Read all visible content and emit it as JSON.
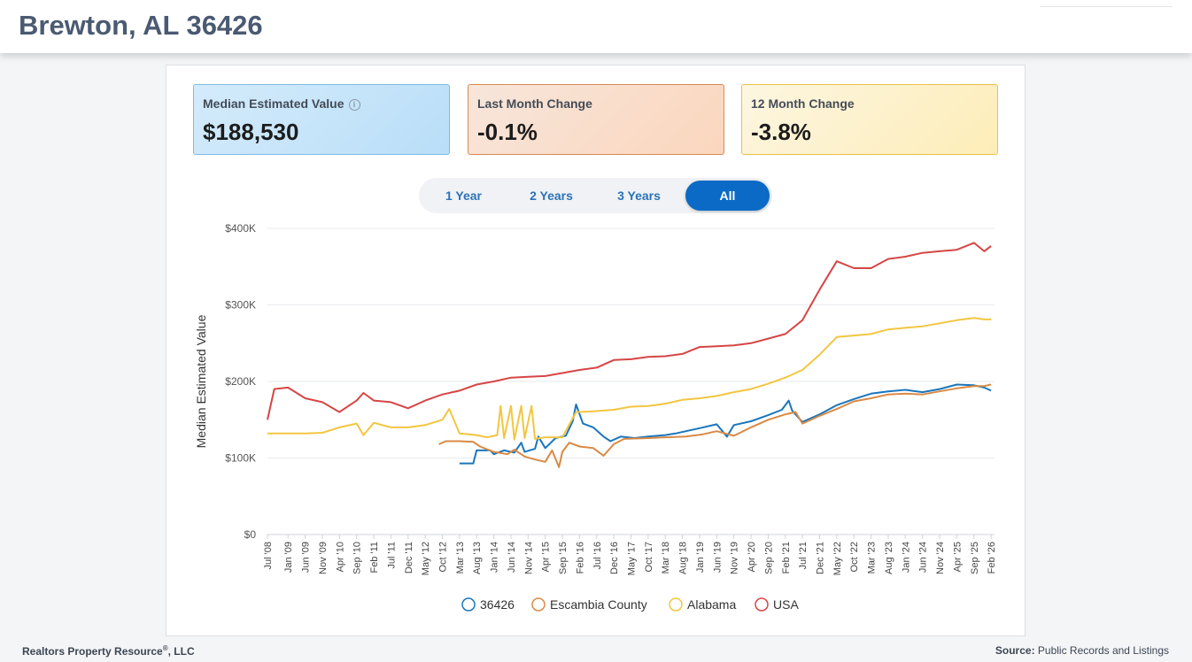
{
  "header": {
    "title": "Brewton, AL 36426"
  },
  "cards": [
    {
      "label": "Median Estimated Value",
      "value": "$188,530",
      "icon": "info-icon"
    },
    {
      "label": "Last Month Change",
      "value": "-0.1%"
    },
    {
      "label": "12 Month Change",
      "value": "-3.8%"
    }
  ],
  "tabs": [
    {
      "label": "1 Year",
      "active": false
    },
    {
      "label": "2 Years",
      "active": false
    },
    {
      "label": "3 Years",
      "active": false
    },
    {
      "label": "All",
      "active": true
    }
  ],
  "footer": {
    "left": "Realtors Property Resource",
    "left_mark": "®",
    "left_suffix": ", LLC",
    "right_label": "Source:",
    "right_text": " Public Records and Listings"
  },
  "chart_data": {
    "type": "line",
    "ylabel": "Median Estimated Value",
    "ylim": [
      0,
      400000
    ],
    "yticks": [
      0,
      100000,
      200000,
      300000,
      400000
    ],
    "ytick_labels": [
      "$0",
      "$100K",
      "$200K",
      "$300K",
      "$400K"
    ],
    "x_range": [
      "2008-07",
      "2026-03"
    ],
    "x_tick_labels": [
      "Jul '08",
      "Jan '09",
      "Jun '09",
      "Nov '09",
      "Apr '10",
      "Sep '10",
      "Feb '11",
      "Jul '11",
      "Dec '11",
      "May '12",
      "Oct '12",
      "Mar '13",
      "Aug '13",
      "Jan '14",
      "Jun '14",
      "Nov '14",
      "Apr '15",
      "Sep '15",
      "Feb '16",
      "Jul '16",
      "Dec '16",
      "May '17",
      "Oct '17",
      "Mar '18",
      "Aug '18",
      "Jan '19",
      "Jun '19",
      "Nov '19",
      "Apr '20",
      "Sep '20",
      "Feb '21",
      "Jul '21",
      "Dec '21",
      "May '22",
      "Oct '22",
      "Mar '23",
      "Aug '23",
      "Jan '24",
      "Jun '24",
      "Nov '24",
      "Apr '25",
      "Sep '25",
      "Feb '26"
    ],
    "grid": true,
    "legend_position": "bottom",
    "series": [
      {
        "name": "36426",
        "color": "#1a76bd",
        "points": [
          [
            "2013-03",
            93000
          ],
          [
            "2013-07",
            93000
          ],
          [
            "2013-08",
            110000
          ],
          [
            "2013-12",
            110000
          ],
          [
            "2014-01",
            105000
          ],
          [
            "2014-04",
            110000
          ],
          [
            "2014-07",
            107000
          ],
          [
            "2014-09",
            120000
          ],
          [
            "2014-10",
            108000
          ],
          [
            "2015-01",
            112000
          ],
          [
            "2015-02",
            128000
          ],
          [
            "2015-04",
            113000
          ],
          [
            "2015-07",
            126000
          ],
          [
            "2015-10",
            129000
          ],
          [
            "2015-12",
            148000
          ],
          [
            "2016-01",
            170000
          ],
          [
            "2016-03",
            145000
          ],
          [
            "2016-06",
            140000
          ],
          [
            "2016-09",
            128000
          ],
          [
            "2016-11",
            122000
          ],
          [
            "2017-02",
            128000
          ],
          [
            "2017-06",
            126000
          ],
          [
            "2017-10",
            128000
          ],
          [
            "2018-03",
            130000
          ],
          [
            "2018-06",
            132000
          ],
          [
            "2018-09",
            135000
          ],
          [
            "2019-01",
            139000
          ],
          [
            "2019-06",
            144000
          ],
          [
            "2019-09",
            128000
          ],
          [
            "2019-11",
            143000
          ],
          [
            "2020-04",
            148000
          ],
          [
            "2020-09",
            156000
          ],
          [
            "2021-01",
            163000
          ],
          [
            "2021-03",
            175000
          ],
          [
            "2021-04",
            162000
          ],
          [
            "2021-07",
            147000
          ],
          [
            "2021-12",
            157000
          ],
          [
            "2022-05",
            169000
          ],
          [
            "2022-10",
            177000
          ],
          [
            "2023-03",
            184000
          ],
          [
            "2023-08",
            187000
          ],
          [
            "2024-01",
            189000
          ],
          [
            "2024-06",
            186000
          ],
          [
            "2024-11",
            190000
          ],
          [
            "2025-04",
            196000
          ],
          [
            "2025-09",
            195000
          ],
          [
            "2025-12",
            192000
          ],
          [
            "2026-02",
            188000
          ]
        ]
      },
      {
        "name": "Escambia County",
        "color": "#d98a45",
        "points": [
          [
            "2012-09",
            118000
          ],
          [
            "2012-11",
            122000
          ],
          [
            "2013-03",
            122000
          ],
          [
            "2013-07",
            121000
          ],
          [
            "2013-09",
            115000
          ],
          [
            "2014-01",
            108000
          ],
          [
            "2014-05",
            105000
          ],
          [
            "2014-07",
            111000
          ],
          [
            "2014-10",
            102000
          ],
          [
            "2015-01",
            98000
          ],
          [
            "2015-04",
            95000
          ],
          [
            "2015-06",
            110000
          ],
          [
            "2015-08",
            88000
          ],
          [
            "2015-09",
            108000
          ],
          [
            "2015-11",
            120000
          ],
          [
            "2016-02",
            115000
          ],
          [
            "2016-06",
            113000
          ],
          [
            "2016-09",
            103000
          ],
          [
            "2016-12",
            118000
          ],
          [
            "2017-03",
            125000
          ],
          [
            "2017-10",
            126000
          ],
          [
            "2018-03",
            127000
          ],
          [
            "2018-09",
            128000
          ],
          [
            "2019-02",
            131000
          ],
          [
            "2019-06",
            135000
          ],
          [
            "2019-11",
            129000
          ],
          [
            "2020-04",
            140000
          ],
          [
            "2020-09",
            150000
          ],
          [
            "2021-02",
            157000
          ],
          [
            "2021-05",
            160000
          ],
          [
            "2021-07",
            145000
          ],
          [
            "2021-12",
            155000
          ],
          [
            "2022-05",
            164000
          ],
          [
            "2022-10",
            174000
          ],
          [
            "2023-03",
            178000
          ],
          [
            "2023-08",
            183000
          ],
          [
            "2024-01",
            184000
          ],
          [
            "2024-06",
            183000
          ],
          [
            "2024-11",
            187000
          ],
          [
            "2025-04",
            191000
          ],
          [
            "2025-09",
            194000
          ],
          [
            "2025-12",
            194000
          ],
          [
            "2026-02",
            196000
          ]
        ]
      },
      {
        "name": "Alabama",
        "color": "#f2c641",
        "points": [
          [
            "2008-07",
            132000
          ],
          [
            "2009-01",
            132000
          ],
          [
            "2009-06",
            132000
          ],
          [
            "2009-11",
            133000
          ],
          [
            "2010-04",
            140000
          ],
          [
            "2010-09",
            145000
          ],
          [
            "2010-11",
            130000
          ],
          [
            "2011-02",
            146000
          ],
          [
            "2011-07",
            140000
          ],
          [
            "2011-12",
            140000
          ],
          [
            "2012-05",
            143000
          ],
          [
            "2012-10",
            150000
          ],
          [
            "2012-12",
            164000
          ],
          [
            "2013-03",
            132000
          ],
          [
            "2013-08",
            130000
          ],
          [
            "2013-11",
            127000
          ],
          [
            "2014-02",
            130000
          ],
          [
            "2014-03",
            168000
          ],
          [
            "2014-04",
            126000
          ],
          [
            "2014-06",
            168000
          ],
          [
            "2014-07",
            124000
          ],
          [
            "2014-09",
            168000
          ],
          [
            "2014-10",
            126000
          ],
          [
            "2014-12",
            168000
          ],
          [
            "2015-01",
            125000
          ],
          [
            "2015-04",
            127000
          ],
          [
            "2015-09",
            127000
          ],
          [
            "2016-01",
            160000
          ],
          [
            "2016-06",
            161000
          ],
          [
            "2016-12",
            163000
          ],
          [
            "2017-05",
            167000
          ],
          [
            "2017-10",
            168000
          ],
          [
            "2018-03",
            171000
          ],
          [
            "2018-08",
            176000
          ],
          [
            "2019-01",
            178000
          ],
          [
            "2019-06",
            181000
          ],
          [
            "2019-11",
            186000
          ],
          [
            "2020-04",
            190000
          ],
          [
            "2020-09",
            197000
          ],
          [
            "2021-02",
            205000
          ],
          [
            "2021-07",
            215000
          ],
          [
            "2021-12",
            235000
          ],
          [
            "2022-05",
            258000
          ],
          [
            "2022-10",
            260000
          ],
          [
            "2023-03",
            262000
          ],
          [
            "2023-08",
            268000
          ],
          [
            "2024-01",
            270000
          ],
          [
            "2024-06",
            272000
          ],
          [
            "2024-11",
            276000
          ],
          [
            "2025-04",
            280000
          ],
          [
            "2025-09",
            283000
          ],
          [
            "2025-12",
            281000
          ],
          [
            "2026-02",
            281000
          ]
        ]
      },
      {
        "name": "USA",
        "color": "#d64545",
        "points": [
          [
            "2008-07",
            150000
          ],
          [
            "2008-09",
            190000
          ],
          [
            "2009-01",
            192000
          ],
          [
            "2009-06",
            178000
          ],
          [
            "2009-11",
            173000
          ],
          [
            "2010-04",
            160000
          ],
          [
            "2010-09",
            175000
          ],
          [
            "2010-11",
            185000
          ],
          [
            "2011-02",
            175000
          ],
          [
            "2011-07",
            173000
          ],
          [
            "2011-12",
            165000
          ],
          [
            "2012-05",
            175000
          ],
          [
            "2012-10",
            183000
          ],
          [
            "2013-03",
            188000
          ],
          [
            "2013-08",
            196000
          ],
          [
            "2014-01",
            200000
          ],
          [
            "2014-06",
            205000
          ],
          [
            "2014-11",
            206000
          ],
          [
            "2015-04",
            207000
          ],
          [
            "2015-09",
            211000
          ],
          [
            "2016-02",
            215000
          ],
          [
            "2016-07",
            218000
          ],
          [
            "2016-12",
            228000
          ],
          [
            "2017-05",
            229000
          ],
          [
            "2017-10",
            232000
          ],
          [
            "2018-03",
            233000
          ],
          [
            "2018-08",
            236000
          ],
          [
            "2019-01",
            245000
          ],
          [
            "2019-06",
            246000
          ],
          [
            "2019-11",
            247000
          ],
          [
            "2020-04",
            250000
          ],
          [
            "2020-09",
            256000
          ],
          [
            "2021-02",
            262000
          ],
          [
            "2021-07",
            280000
          ],
          [
            "2021-12",
            320000
          ],
          [
            "2022-05",
            357000
          ],
          [
            "2022-10",
            348000
          ],
          [
            "2023-03",
            348000
          ],
          [
            "2023-08",
            360000
          ],
          [
            "2024-01",
            363000
          ],
          [
            "2024-06",
            368000
          ],
          [
            "2024-11",
            370000
          ],
          [
            "2025-04",
            372000
          ],
          [
            "2025-09",
            381000
          ],
          [
            "2025-12",
            370000
          ],
          [
            "2026-02",
            377000
          ]
        ]
      }
    ]
  }
}
